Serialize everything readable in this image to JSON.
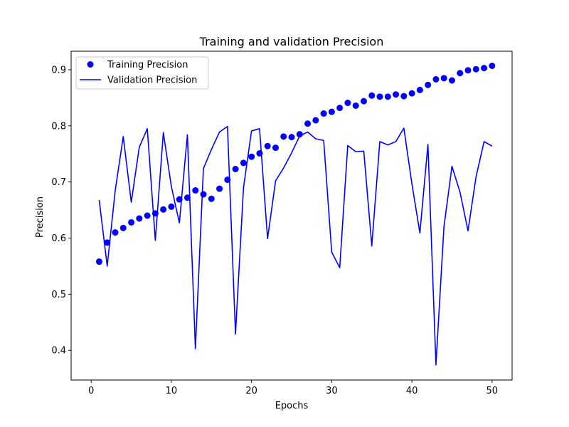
{
  "chart_data": {
    "type": "line",
    "title": "Training and validation Precision",
    "xlabel": "Epochs",
    "ylabel": "Precision",
    "xlim": [
      -2.5,
      52.5
    ],
    "ylim": [
      0.347,
      0.933
    ],
    "xticks": [
      0,
      10,
      20,
      30,
      40,
      50
    ],
    "yticks": [
      0.4,
      0.5,
      0.6,
      0.7,
      0.8,
      0.9
    ],
    "legend_position": "top-left",
    "x": [
      1,
      2,
      3,
      4,
      5,
      6,
      7,
      8,
      9,
      10,
      11,
      12,
      13,
      14,
      15,
      16,
      17,
      18,
      19,
      20,
      21,
      22,
      23,
      24,
      25,
      26,
      27,
      28,
      29,
      30,
      31,
      32,
      33,
      34,
      35,
      36,
      37,
      38,
      39,
      40,
      41,
      42,
      43,
      44,
      45,
      46,
      47,
      48,
      49,
      50
    ],
    "series": [
      {
        "name": "Training Precision",
        "style": "scatter",
        "color": "#0000ff",
        "values": [
          0.558,
          0.592,
          0.61,
          0.618,
          0.628,
          0.635,
          0.64,
          0.644,
          0.651,
          0.656,
          0.669,
          0.672,
          0.685,
          0.678,
          0.67,
          0.688,
          0.704,
          0.723,
          0.734,
          0.745,
          0.751,
          0.764,
          0.761,
          0.781,
          0.78,
          0.785,
          0.804,
          0.81,
          0.822,
          0.825,
          0.832,
          0.841,
          0.836,
          0.844,
          0.854,
          0.852,
          0.852,
          0.856,
          0.853,
          0.858,
          0.864,
          0.873,
          0.883,
          0.885,
          0.881,
          0.894,
          0.899,
          0.901,
          0.903,
          0.907
        ]
      },
      {
        "name": "Validation Precision",
        "style": "line",
        "color": "#0000ff",
        "values": [
          0.668,
          0.55,
          0.685,
          0.781,
          0.664,
          0.762,
          0.795,
          0.596,
          0.788,
          0.692,
          0.627,
          0.784,
          0.403,
          0.724,
          0.758,
          0.789,
          0.799,
          0.429,
          0.69,
          0.791,
          0.795,
          0.599,
          0.702,
          0.725,
          0.752,
          0.782,
          0.789,
          0.777,
          0.774,
          0.575,
          0.547,
          0.765,
          0.754,
          0.755,
          0.586,
          0.772,
          0.766,
          0.772,
          0.796,
          0.697,
          0.609,
          0.767,
          0.374,
          0.62,
          0.728,
          0.682,
          0.613,
          0.709,
          0.772,
          0.764
        ]
      }
    ]
  }
}
